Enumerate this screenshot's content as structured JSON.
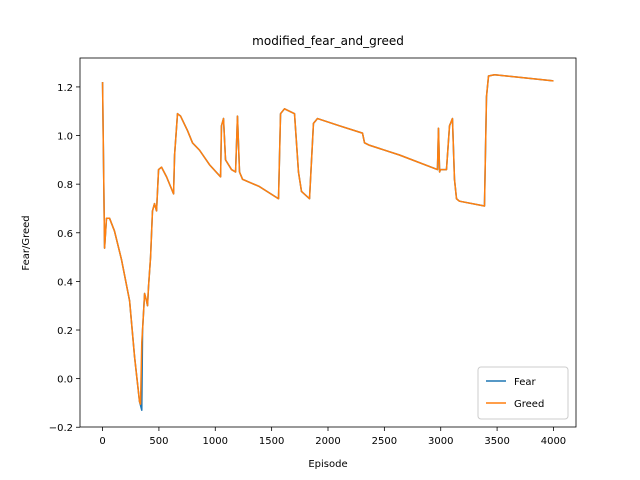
{
  "chart_data": {
    "type": "line",
    "title": "modified_fear_and_greed",
    "x_label": "Episode",
    "y_label": "Fear/Greed",
    "x": [
      0,
      18,
      35,
      62,
      106,
      168,
      240,
      284,
      328,
      337,
      348,
      355,
      373,
      390,
      399,
      408,
      426,
      443,
      461,
      479,
      497,
      523,
      568,
      630,
      639,
      665,
      692,
      754,
      798,
      860,
      949,
      1047,
      1055,
      1073,
      1091,
      1144,
      1180,
      1197,
      1215,
      1242,
      1392,
      1561,
      1579,
      1614,
      1703,
      1738,
      1765,
      1836,
      1871,
      1907,
      2102,
      2306,
      2324,
      2368,
      2634,
      2971,
      2980,
      2990,
      2998,
      3051,
      3078,
      3104,
      3122,
      3140,
      3166,
      3388,
      3406,
      3424,
      3477,
      4000
    ],
    "series": [
      {
        "name": "Fear",
        "color": "#1f77b4",
        "values": [
          1.22,
          0.537,
          0.66,
          0.66,
          0.607,
          0.49,
          0.32,
          0.09,
          -0.095,
          -0.11,
          -0.13,
          0.2,
          0.35,
          0.32,
          0.3,
          0.38,
          0.5,
          0.69,
          0.72,
          0.69,
          0.86,
          0.87,
          0.83,
          0.76,
          0.92,
          1.09,
          1.08,
          1.02,
          0.97,
          0.94,
          0.88,
          0.83,
          1.04,
          1.07,
          0.9,
          0.86,
          0.85,
          1.08,
          0.85,
          0.82,
          0.79,
          0.74,
          1.09,
          1.11,
          1.09,
          0.85,
          0.77,
          0.74,
          1.05,
          1.07,
          1.04,
          1.01,
          0.97,
          0.96,
          0.92,
          0.86,
          1.03,
          0.85,
          0.86,
          0.86,
          1.04,
          1.07,
          0.82,
          0.74,
          0.73,
          0.71,
          1.16,
          1.245,
          1.25,
          1.225
        ]
      },
      {
        "name": "Greed",
        "color": "#ff7f0e",
        "values": [
          1.22,
          0.537,
          0.66,
          0.66,
          0.607,
          0.49,
          0.32,
          0.09,
          -0.095,
          -0.105,
          0.15,
          0.2,
          0.35,
          0.32,
          0.3,
          0.38,
          0.5,
          0.69,
          0.72,
          0.69,
          0.86,
          0.87,
          0.83,
          0.76,
          0.92,
          1.09,
          1.08,
          1.02,
          0.97,
          0.94,
          0.88,
          0.83,
          1.04,
          1.07,
          0.9,
          0.86,
          0.85,
          1.08,
          0.85,
          0.82,
          0.79,
          0.74,
          1.09,
          1.11,
          1.09,
          0.85,
          0.77,
          0.74,
          1.05,
          1.07,
          1.04,
          1.01,
          0.97,
          0.96,
          0.92,
          0.86,
          1.03,
          0.85,
          0.86,
          0.86,
          1.04,
          1.07,
          0.82,
          0.74,
          0.73,
          0.71,
          1.16,
          1.245,
          1.25,
          1.225
        ]
      }
    ],
    "xlim": [
      -200,
      4200
    ],
    "xticks": [
      0,
      500,
      1000,
      1500,
      2000,
      2500,
      3000,
      3500,
      4000
    ],
    "ylim": [
      -0.199,
      1.319
    ],
    "yticks": [
      {
        "value": -0.2,
        "label": "−0.2"
      },
      {
        "value": 0,
        "label": "0.0"
      },
      0.2,
      0.4,
      0.6,
      0.8,
      {
        "value": 1,
        "label": "1.0"
      },
      1.2
    ],
    "legend": "lower right",
    "grid": false
  }
}
